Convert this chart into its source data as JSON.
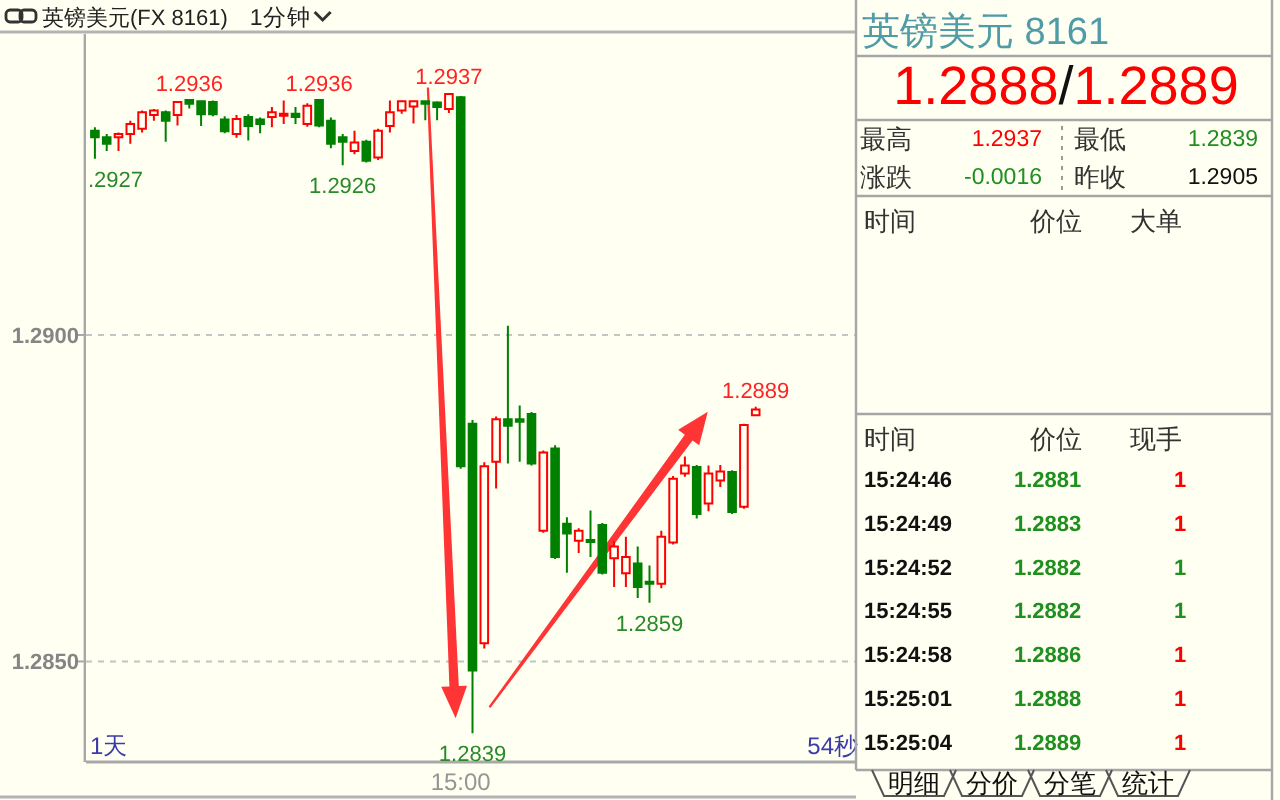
{
  "chart_data": [
    {
      "type": "candlestick",
      "title": "英镑美元(FX 8161)",
      "subtitle": "1分钟",
      "categories": [
        null,
        null,
        null,
        null,
        null,
        null,
        null,
        null,
        null,
        null,
        null,
        null,
        null,
        null,
        null,
        null,
        null,
        null,
        null,
        null,
        null,
        null,
        null,
        null,
        null,
        null,
        null,
        null,
        null,
        null,
        null,
        "15:00",
        null,
        null,
        null,
        null,
        null,
        null,
        null,
        null,
        null,
        null,
        null,
        null,
        null,
        null,
        null,
        null,
        null,
        null,
        null,
        null,
        null,
        null,
        null,
        null,
        null,
        null,
        null,
        null,
        null,
        null,
        null,
        null,
        null
      ],
      "ohlc": [
        [
          1.29313,
          1.29318,
          1.2927,
          1.29303
        ],
        [
          1.29303,
          1.29308,
          1.29282,
          1.29293
        ],
        [
          1.29303,
          1.2931,
          1.29282,
          1.29308
        ],
        [
          1.29308,
          1.29328,
          1.29293,
          1.29323
        ],
        [
          1.29316,
          1.29344,
          1.2931,
          1.29341
        ],
        [
          1.29337,
          1.29346,
          1.29328,
          1.29344
        ],
        [
          1.29341,
          1.29344,
          1.29296,
          1.29328
        ],
        [
          1.29337,
          1.29358,
          1.29321,
          1.29357
        ],
        [
          1.2936,
          1.2936,
          1.29347,
          1.29354
        ],
        [
          1.29358,
          1.29359,
          1.2932,
          1.29338
        ],
        [
          1.29357,
          1.29359,
          1.29335,
          1.29338
        ],
        [
          1.2933,
          1.29335,
          1.29309,
          1.29312
        ],
        [
          1.29308,
          1.29337,
          1.29302,
          1.29331
        ],
        [
          1.29334,
          1.29338,
          1.29298,
          1.2932
        ],
        [
          1.2933,
          1.29333,
          1.29309,
          1.29323
        ],
        [
          1.29334,
          1.29349,
          1.29318,
          1.29341
        ],
        [
          1.29337,
          1.29359,
          1.29323,
          1.29339
        ],
        [
          1.29339,
          1.29349,
          1.29323,
          1.29334
        ],
        [
          1.29323,
          1.29355,
          1.29319,
          1.29351
        ],
        [
          1.2936,
          1.2936,
          1.29318,
          1.29321
        ],
        [
          1.29328,
          1.29333,
          1.29286,
          1.29293
        ],
        [
          1.29303,
          1.29308,
          1.2926,
          1.29296
        ],
        [
          1.29282,
          1.29313,
          1.29277,
          1.29295
        ],
        [
          1.29296,
          1.29299,
          1.29264,
          1.29267
        ],
        [
          1.29272,
          1.29316,
          1.29268,
          1.29313
        ],
        [
          1.2932,
          1.29359,
          1.2931,
          1.29341
        ],
        [
          1.29344,
          1.29359,
          1.29339,
          1.29358
        ],
        [
          1.2935,
          1.29359,
          1.29324,
          1.29358
        ],
        [
          1.29358,
          1.29359,
          1.29329,
          1.29354
        ],
        [
          1.29356,
          1.29358,
          1.29329,
          1.29349
        ],
        [
          1.29346,
          1.2937,
          1.2934,
          1.29369
        ],
        [
          1.29364,
          1.29366,
          1.28795,
          1.28799
        ],
        [
          1.28864,
          1.2887,
          1.2839,
          1.28486
        ],
        [
          1.28528,
          1.28805,
          1.2852,
          1.28799
        ],
        [
          1.28806,
          1.28875,
          1.28765,
          1.28871
        ],
        [
          1.28871,
          1.29014,
          1.28803,
          1.28861
        ],
        [
          1.28871,
          1.28892,
          1.28806,
          1.28867
        ],
        [
          1.28879,
          1.28882,
          1.288,
          1.28803
        ],
        [
          1.287,
          1.28823,
          1.28697,
          1.2882
        ],
        [
          1.28826,
          1.28831,
          1.28657,
          1.2866
        ],
        [
          1.28711,
          1.28721,
          1.28636,
          1.28696
        ],
        [
          1.28685,
          1.28704,
          1.28666,
          1.287
        ],
        [
          1.28686,
          1.28731,
          1.2866,
          1.28684
        ],
        [
          1.28709,
          1.28712,
          1.28633,
          1.28636
        ],
        [
          1.28658,
          1.28684,
          1.28614,
          1.28676
        ],
        [
          1.28635,
          1.28691,
          1.28614,
          1.2866
        ],
        [
          1.2865,
          1.28676,
          1.28597,
          1.28614
        ],
        [
          1.28622,
          1.28647,
          1.2859,
          1.2862
        ],
        [
          1.28619,
          1.287,
          1.28612,
          1.28691
        ],
        [
          1.28682,
          1.28784,
          1.28679,
          1.2878
        ],
        [
          1.28788,
          1.28814,
          1.28783,
          1.288
        ],
        [
          1.28798,
          1.28801,
          1.28719,
          1.28726
        ],
        [
          1.28742,
          1.288,
          1.2873,
          1.28788
        ],
        [
          1.28777,
          1.28801,
          1.28767,
          1.28791
        ],
        [
          1.2879,
          1.28793,
          1.28726,
          1.28729
        ],
        [
          1.28737,
          1.28864,
          1.28734,
          1.28862
        ],
        [
          1.28877,
          1.2889,
          1.28876,
          1.28886
        ],
        null,
        null,
        null,
        null,
        null,
        null,
        null,
        null
      ],
      "ylim": [
        1.28346,
        1.29461
      ],
      "yticks": [
        {
          "value": 1.29,
          "label": "1.2900"
        },
        {
          "value": 1.285,
          "label": "1.2850"
        }
      ],
      "grid": "y",
      "annotations": [
        {
          "text": "1.2936",
          "y": 1.2936
        },
        {
          "text": "1.2936",
          "y": 1.2936
        },
        {
          "text": "1.2937",
          "y": 1.2937
        },
        {
          "text": ".2927",
          "y": 1.2927
        },
        {
          "text": "1.2926",
          "y": 1.2926
        },
        {
          "text": "1.2839",
          "y": 1.2839
        },
        {
          "text": "1.2859",
          "y": 1.2859
        },
        {
          "text": "1.2889",
          "y": 1.2889
        },
        "1天",
        "54秒"
      ]
    },
    {
      "type": "other",
      "title": "英镑美元 8161",
      "subtitle": "1.2888/1.2889",
      "annotations": [
        "最高",
        "1.2937",
        "最低",
        "1.2839",
        "涨跌",
        "-0.0016",
        "昨收",
        "1.2905",
        "时间",
        "价位",
        "大单",
        "明细",
        "分价",
        "分笔",
        "统计"
      ]
    },
    {
      "type": "heatmap",
      "ylabel": "时间",
      "categories": [
        "价位",
        "现手"
      ],
      "y_categories": [
        "15:24:46",
        "15:24:49",
        "15:24:52",
        "15:24:55",
        "15:24:58",
        "15:25:01",
        "15:25:04"
      ],
      "cells": [
        [
          1.2881,
          1
        ],
        [
          1.2883,
          1
        ],
        [
          1.2882,
          1
        ],
        [
          1.2882,
          1
        ],
        [
          1.2886,
          1
        ],
        [
          1.2888,
          1
        ],
        [
          1.2889,
          1
        ]
      ],
      "data_labels": true
    }
  ]
}
